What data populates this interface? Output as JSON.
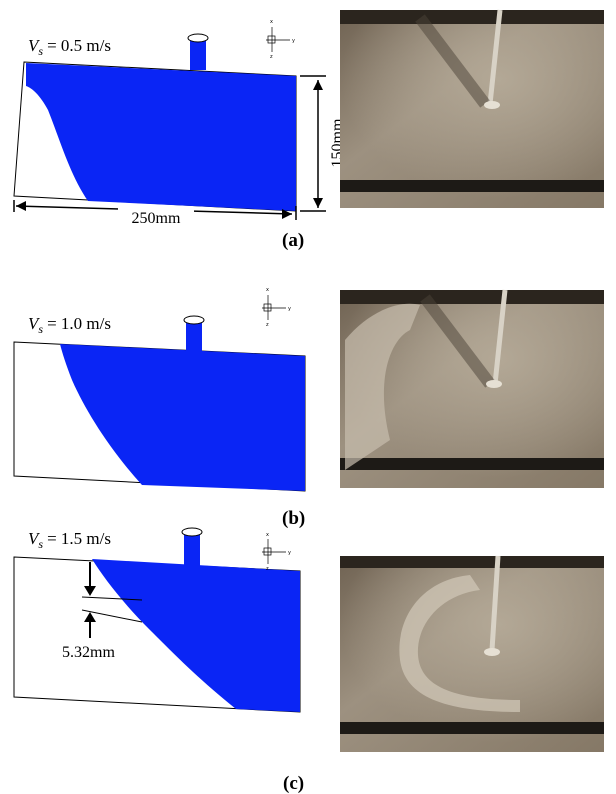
{
  "panels": [
    {
      "label": "(a)",
      "speed_symbol": "V",
      "speed_subscript": "s",
      "speed_value": "= 0.5 m/s"
    },
    {
      "label": "(b)",
      "speed_symbol": "V",
      "speed_subscript": "s",
      "speed_value": "= 1.0 m/s"
    },
    {
      "label": "(c)",
      "speed_symbol": "V",
      "speed_subscript": "s",
      "speed_value": "= 1.5 m/s"
    }
  ],
  "dimensions": {
    "width": "250mm",
    "height": "150mm",
    "gap": "5.32mm"
  },
  "axis_labels": {
    "x": "x",
    "y": "y",
    "z": "z"
  }
}
